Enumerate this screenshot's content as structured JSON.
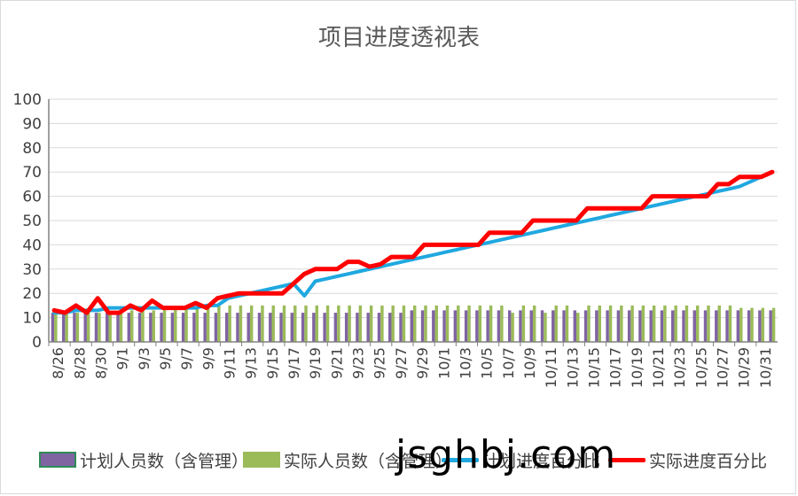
{
  "chart_data": {
    "type": "bar+line",
    "title": "项目进度透视表",
    "ylim": [
      0,
      100
    ],
    "yticks": [
      0,
      10,
      20,
      30,
      40,
      50,
      60,
      70,
      80,
      90,
      100
    ],
    "xtick_labels": [
      "8/26",
      "8/28",
      "8/30",
      "9/1",
      "9/3",
      "9/5",
      "9/7",
      "9/9",
      "9/11",
      "9/13",
      "9/15",
      "9/17",
      "9/19",
      "9/21",
      "9/23",
      "9/25",
      "9/27",
      "9/29",
      "10/1",
      "10/3",
      "10/5",
      "10/7",
      "10/9",
      "10/11",
      "10/13",
      "10/15",
      "10/17",
      "10/19",
      "10/21",
      "10/23",
      "10/25",
      "10/27",
      "10/29",
      "10/31"
    ],
    "grid": true,
    "legend_position": "bottom",
    "series": [
      {
        "name": "计划人员数（含管理）",
        "type": "bar",
        "color": "#8064a2",
        "values": [
          12,
          12,
          12,
          12,
          12,
          12,
          12,
          12,
          12,
          12,
          12,
          12,
          12,
          12,
          12,
          12,
          12,
          12,
          12,
          12,
          12,
          12,
          12,
          12,
          12,
          12,
          12,
          12,
          12,
          12,
          12,
          12,
          12,
          13,
          13,
          13,
          13,
          13,
          13,
          13,
          13,
          13,
          13,
          13,
          13,
          13,
          13,
          13,
          13,
          13,
          13,
          13,
          13,
          13,
          13,
          13,
          13,
          13,
          13,
          13,
          13,
          13,
          13,
          13,
          13,
          13,
          13
        ]
      },
      {
        "name": "实际人员数（含管理）",
        "type": "bar",
        "color": "#9bbb59",
        "values": [
          12,
          12,
          12,
          12,
          12,
          12,
          13,
          13,
          13,
          13,
          14,
          14,
          14,
          14,
          15,
          15,
          15,
          15,
          15,
          15,
          15,
          15,
          15,
          15,
          15,
          15,
          15,
          15,
          15,
          15,
          15,
          15,
          15,
          15,
          15,
          15,
          15,
          15,
          15,
          15,
          15,
          15,
          12,
          15,
          15,
          12,
          15,
          15,
          12,
          15,
          15,
          15,
          15,
          15,
          15,
          15,
          15,
          15,
          15,
          15,
          15,
          15,
          15,
          14,
          14,
          14,
          14
        ]
      },
      {
        "name": "计划进度百分比",
        "type": "line",
        "color": "#1fa8e0",
        "values": [
          12,
          12,
          13,
          13,
          13,
          14,
          14,
          14,
          14,
          14,
          14,
          14,
          14,
          14,
          15,
          15,
          18,
          19,
          20,
          21,
          22,
          23,
          24,
          19,
          25,
          26,
          27,
          28,
          29,
          30,
          31,
          32,
          33,
          34,
          35,
          36,
          37,
          38,
          39,
          40,
          41,
          42,
          43,
          44,
          45,
          46,
          47,
          48,
          49,
          50,
          51,
          52,
          53,
          54,
          55,
          56,
          57,
          58,
          59,
          60,
          61,
          62,
          63,
          64,
          66,
          68,
          70
        ]
      },
      {
        "name": "实际进度百分比",
        "type": "line",
        "color": "#ff0000",
        "values": [
          13,
          12,
          15,
          12,
          18,
          12,
          12,
          15,
          13,
          17,
          14,
          14,
          14,
          16,
          14,
          18,
          19,
          20,
          20,
          20,
          20,
          20,
          24,
          28,
          30,
          30,
          30,
          33,
          33,
          31,
          32,
          35,
          35,
          35,
          40,
          40,
          40,
          40,
          40,
          40,
          45,
          45,
          45,
          45,
          50,
          50,
          50,
          50,
          50,
          55,
          55,
          55,
          55,
          55,
          55,
          60,
          60,
          60,
          60,
          60,
          60,
          65,
          65,
          68,
          68,
          68,
          70
        ]
      }
    ]
  },
  "watermark": "jsghbj.com"
}
